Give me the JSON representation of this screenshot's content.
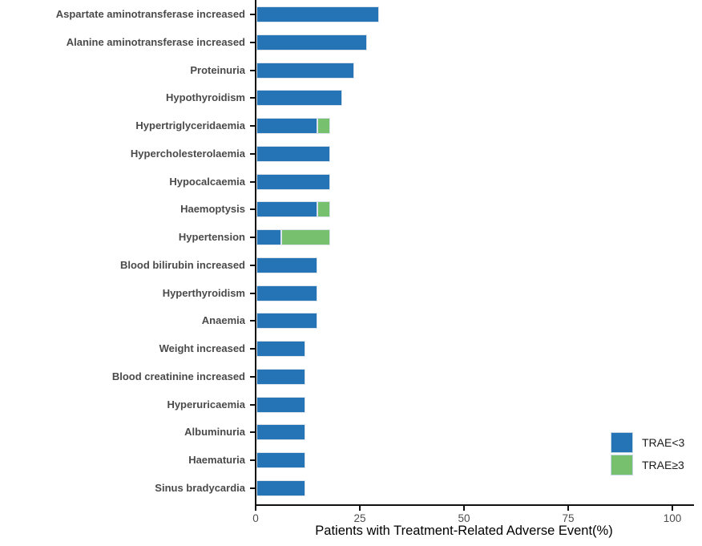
{
  "chart_data": {
    "type": "bar",
    "orientation": "horizontal",
    "stacked": true,
    "title": "",
    "xlabel": "Patients with Treatment-Related Adverse Event(%)",
    "ylabel": "",
    "xlim": [
      0,
      105
    ],
    "x_ticks": [
      0,
      25,
      50,
      75,
      100
    ],
    "grid": false,
    "legend_position": "right-bottom",
    "categories": [
      "Aspartate aminotransferase increased",
      "Alanine aminotransferase increased",
      "Proteinuria",
      "Hypothyroidism",
      "Hypertriglyceridaemia",
      "Hypercholesterolaemia",
      "Hypocalcaemia",
      "Haemoptysis",
      "Hypertension",
      "Blood bilirubin increased",
      "Hyperthyroidism",
      "Anaemia",
      "Weight increased",
      "Blood creatinine increased",
      "Hyperuricaemia",
      "Albuminuria",
      "Haematuria",
      "Sinus bradycardia"
    ],
    "series": [
      {
        "name": "TRAE<3",
        "color": "#2474b6",
        "values": [
          29.4,
          26.5,
          23.5,
          20.6,
          14.7,
          17.6,
          17.6,
          14.7,
          5.9,
          14.7,
          14.7,
          14.7,
          11.8,
          11.8,
          11.8,
          11.8,
          11.8,
          11.8
        ]
      },
      {
        "name": "TRAE≥3",
        "color": "#77c16e",
        "values": [
          0,
          0,
          0,
          0,
          2.9,
          0,
          0,
          2.9,
          11.8,
          0,
          0,
          0,
          0,
          0,
          0,
          0,
          0,
          0
        ]
      }
    ]
  },
  "legend": {
    "items": [
      {
        "label": "TRAE<3",
        "color": "#2474b6"
      },
      {
        "label": "TRAE≥3",
        "color": "#77c16e"
      }
    ]
  },
  "axis": {
    "title": "Patients with Treatment-Related Adverse Event(%)"
  }
}
